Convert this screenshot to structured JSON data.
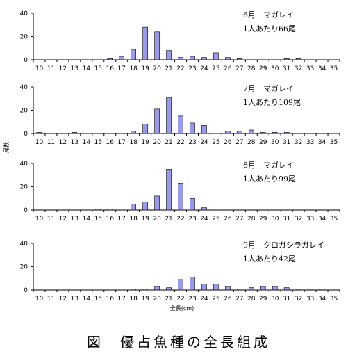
{
  "figure": {
    "caption": "図　優占魚種の全長組成",
    "ylabel": "尾数",
    "xlabel": "全長(cm)"
  },
  "chart_data": [
    {
      "type": "bar",
      "annotation": [
        "6月　マガレイ",
        "1人あたり66尾"
      ],
      "ylim": [
        0,
        40
      ],
      "yticks": [
        0,
        20,
        40
      ],
      "categories": [
        "10",
        "11",
        "12",
        "13",
        "14",
        "15",
        "16",
        "17",
        "18",
        "19",
        "20",
        "21",
        "22",
        "23",
        "24",
        "25",
        "26",
        "27",
        "28",
        "29",
        "30",
        "31",
        "32",
        "33",
        "34",
        "35"
      ],
      "values": [
        0,
        0,
        0,
        0,
        0,
        0,
        1,
        3,
        9,
        28,
        24,
        8,
        2,
        3,
        2,
        6,
        2,
        1,
        0,
        0,
        0,
        1,
        1,
        0,
        0,
        0
      ]
    },
    {
      "type": "bar",
      "annotation": [
        "7月　マガレイ",
        "1人あたり109尾"
      ],
      "ylim": [
        0,
        40
      ],
      "yticks": [
        0,
        20,
        40
      ],
      "categories": [
        "10",
        "11",
        "12",
        "13",
        "14",
        "15",
        "16",
        "17",
        "18",
        "19",
        "20",
        "21",
        "22",
        "23",
        "24",
        "25",
        "26",
        "27",
        "28",
        "29",
        "30",
        "31",
        "32",
        "33",
        "34",
        "35"
      ],
      "values": [
        1,
        0,
        0,
        1,
        0,
        0,
        0,
        0,
        2,
        8,
        21,
        31,
        15,
        9,
        7,
        0,
        2,
        2,
        3,
        1,
        1,
        1,
        0,
        0,
        0,
        0
      ]
    },
    {
      "type": "bar",
      "annotation": [
        "8月　マガレイ",
        "1人あたり99尾"
      ],
      "ylim": [
        0,
        40
      ],
      "yticks": [
        0,
        20,
        40
      ],
      "categories": [
        "10",
        "11",
        "12",
        "13",
        "14",
        "15",
        "16",
        "17",
        "18",
        "19",
        "20",
        "21",
        "22",
        "23",
        "24",
        "25",
        "26",
        "27",
        "28",
        "29",
        "30",
        "31",
        "32",
        "33",
        "34",
        "35"
      ],
      "values": [
        0,
        0,
        0,
        0,
        0,
        1,
        1,
        0,
        5,
        7,
        12,
        35,
        23,
        10,
        2,
        0,
        0,
        0,
        0,
        0,
        0,
        0,
        0,
        0,
        0,
        0
      ]
    },
    {
      "type": "bar",
      "annotation": [
        "9月　クロガシラガレイ",
        "1人あたり42尾"
      ],
      "ylim": [
        0,
        40
      ],
      "yticks": [
        0,
        20,
        40
      ],
      "categories": [
        "10",
        "11",
        "12",
        "13",
        "14",
        "15",
        "16",
        "17",
        "18",
        "19",
        "20",
        "21",
        "22",
        "23",
        "24",
        "25",
        "26",
        "27",
        "28",
        "29",
        "30",
        "31",
        "32",
        "33",
        "34",
        "35"
      ],
      "values": [
        0,
        0,
        0,
        0,
        0,
        0,
        0,
        0,
        1,
        1,
        3,
        2,
        9,
        11,
        5,
        5,
        3,
        1,
        2,
        3,
        3,
        2,
        1,
        1,
        1,
        0
      ]
    }
  ],
  "style": {
    "bar_fill": "#9999ee",
    "bar_stroke": "#000000",
    "axis_color": "#000000"
  }
}
